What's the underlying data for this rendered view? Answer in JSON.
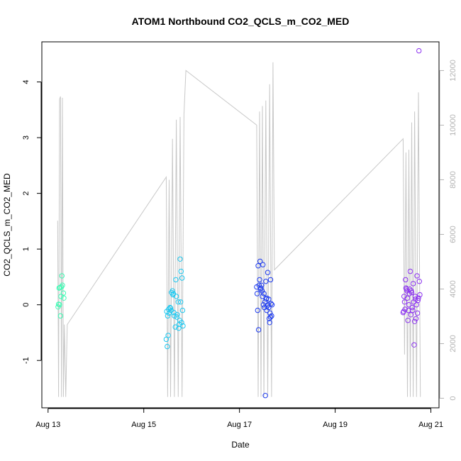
{
  "chart_data": {
    "type": "scatter",
    "title": "ATOM1 Northbound CO2_QCLS_m_CO2_MED",
    "xlabel": "Date",
    "ylabel": "CO2_QCLS_m_CO2_MED",
    "x_ticks": [
      "Aug 13",
      "Aug 15",
      "Aug 17",
      "Aug 19",
      "Aug 21"
    ],
    "x_tick_values": [
      13,
      15,
      17,
      19,
      21
    ],
    "xlim": [
      12.87,
      21.17
    ],
    "y_ticks": [
      -1,
      0,
      1,
      2,
      3,
      4
    ],
    "ylim": [
      -1.85,
      4.72
    ],
    "y2_ticks": [
      0,
      2000,
      4000,
      6000,
      8000,
      10000,
      12000
    ],
    "y2_lim": [
      -350,
      13050
    ],
    "grid": false,
    "legend": "none",
    "colors": {
      "line": "#c8c8c8",
      "axis": "#000000",
      "right_axis": "#b3b3b3"
    },
    "secondary_line": {
      "x": [
        13.2,
        13.22,
        13.24,
        13.26,
        13.28,
        13.3,
        13.32,
        13.34,
        13.37,
        13.4,
        15.47,
        15.5,
        15.53,
        15.56,
        15.6,
        15.64,
        15.68,
        15.72,
        15.76,
        15.8,
        15.84,
        15.88,
        17.36,
        17.39,
        17.42,
        17.45,
        17.48,
        17.51,
        17.55,
        17.59,
        17.63,
        17.67,
        17.7,
        17.73,
        20.42,
        20.45,
        20.48,
        20.51,
        20.54,
        20.57,
        20.6,
        20.63,
        20.66,
        20.7,
        20.74,
        20.78
      ],
      "y": [
        6500,
        50,
        10950,
        11050,
        50,
        11000,
        50,
        2700,
        50,
        2700,
        8100,
        50,
        8000,
        50,
        9500,
        50,
        10200,
        50,
        10300,
        50,
        10400,
        12000,
        10000,
        50,
        10500,
        50,
        10700,
        50,
        10900,
        50,
        11500,
        50,
        12300,
        4700,
        9500,
        1600,
        9000,
        50,
        9100,
        50,
        10100,
        50,
        10500,
        50,
        11200,
        50
      ]
    },
    "series": [
      {
        "name": "",
        "color": "#3cfcb4",
        "x": [
          13.22,
          13.25,
          13.27,
          13.21,
          13.23,
          13.29,
          13.32,
          13.3,
          13.33,
          13.26,
          13.24,
          13.28
        ],
        "y": [
          0.01,
          0.31,
          0.15,
          -0.04,
          0.3,
          0.52,
          0.21,
          0.35,
          0.12,
          -0.2,
          0.0,
          0.32
        ]
      },
      {
        "name": "",
        "color": "#1ec8f0",
        "x": [
          15.47,
          15.49,
          15.51,
          15.53,
          15.55,
          15.57,
          15.6,
          15.62,
          15.64,
          15.66,
          15.68,
          15.7,
          15.72,
          15.74,
          15.76,
          15.78,
          15.8,
          15.82,
          15.5,
          15.48,
          15.52,
          15.58,
          15.63,
          15.69,
          15.75,
          15.79,
          15.81,
          15.56,
          15.61,
          15.67,
          15.73,
          15.77
        ],
        "y": [
          -0.62,
          -0.75,
          -0.55,
          -0.15,
          -0.05,
          -0.1,
          0.25,
          0.2,
          -0.2,
          -0.4,
          0.15,
          -0.18,
          0.05,
          -0.35,
          0.82,
          0.6,
          0.48,
          -0.38,
          -0.2,
          -0.12,
          -0.08,
          0.22,
          -0.14,
          -0.22,
          -0.28,
          -0.32,
          -0.1,
          -0.06,
          0.18,
          0.45,
          -0.42,
          0.05
        ]
      },
      {
        "name": "",
        "color": "#1e3cf0",
        "x": [
          17.37,
          17.39,
          17.41,
          17.43,
          17.45,
          17.47,
          17.49,
          17.51,
          17.53,
          17.55,
          17.57,
          17.59,
          17.61,
          17.63,
          17.65,
          17.67,
          17.38,
          17.4,
          17.42,
          17.44,
          17.46,
          17.48,
          17.5,
          17.52,
          17.54,
          17.56,
          17.58,
          17.6,
          17.62,
          17.64,
          17.66,
          17.68,
          17.36,
          17.57,
          17.61,
          17.65
        ],
        "y": [
          0.2,
          0.7,
          0.35,
          0.78,
          0.3,
          0.25,
          0.72,
          0.2,
          0.05,
          0.42,
          0.12,
          0.58,
          -0.05,
          -0.32,
          0.45,
          -0.2,
          -0.1,
          -0.45,
          0.45,
          0.28,
          0.35,
          0.15,
          0.0,
          -0.05,
          -1.63,
          0.1,
          -0.02,
          0.0,
          -0.25,
          -0.15,
          0.02,
          0.0,
          0.32,
          -0.1,
          0.1,
          -0.22
        ]
      },
      {
        "name": "",
        "color": "#8c32f0",
        "x": [
          20.43,
          20.45,
          20.47,
          20.49,
          20.51,
          20.53,
          20.55,
          20.57,
          20.59,
          20.61,
          20.63,
          20.65,
          20.67,
          20.69,
          20.71,
          20.73,
          20.75,
          20.44,
          20.46,
          20.48,
          20.5,
          20.52,
          20.54,
          20.56,
          20.58,
          20.6,
          20.62,
          20.64,
          20.66,
          20.68,
          20.7,
          20.72,
          20.74,
          20.76,
          20.42,
          20.77
        ],
        "y": [
          -0.12,
          0.05,
          0.45,
          0.28,
          0.12,
          -0.1,
          0.2,
          0.6,
          0.25,
          -0.05,
          0.38,
          -0.72,
          0.15,
          -0.25,
          0.52,
          0.08,
          4.56,
          0.15,
          -0.08,
          0.3,
          0.25,
          -0.28,
          0.0,
          0.28,
          -0.18,
          0.22,
          -0.1,
          0.05,
          -0.3,
          0.1,
          0.0,
          -0.15,
          0.12,
          0.42,
          -0.14,
          0.18
        ]
      }
    ]
  }
}
